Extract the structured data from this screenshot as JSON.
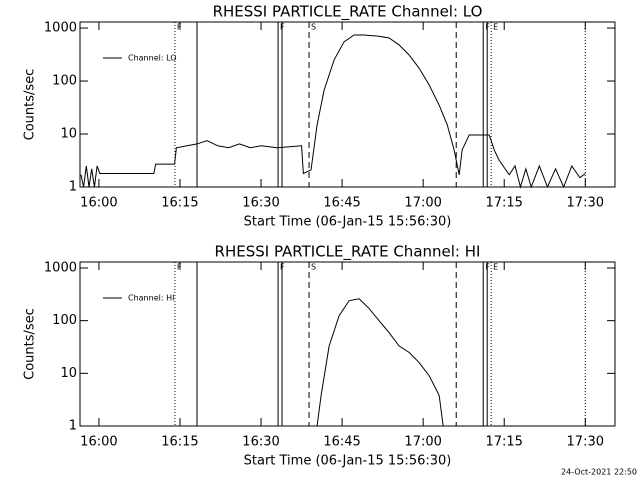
{
  "chart_data": [
    {
      "type": "line",
      "title": "RHESSI PARTICLE_RATE Channel: LO",
      "xlabel": "Start Time (06-Jan-15 15:56:30)",
      "ylabel": "Counts/sec",
      "yscale": "log",
      "ylim": [
        1,
        1300
      ],
      "yticks": [
        1,
        10,
        100,
        1000
      ],
      "xlim": [
        "15:56:30",
        "17:35:30"
      ],
      "xticks": [
        "16:00",
        "16:15",
        "16:30",
        "16:45",
        "17:00",
        "17:15",
        "17:30"
      ],
      "legend": "upper left",
      "series": [
        {
          "name": "Channel: LO",
          "color": "#000000",
          "x": [
            "15:56:40",
            "15:57:10",
            "15:57:40",
            "15:58:10",
            "15:58:40",
            "15:59:10",
            "15:59:40",
            "16:00:10",
            "16:10:10",
            "16:10:30",
            "16:14:00",
            "16:14:20",
            "16:18:10",
            "16:20:00",
            "16:22:00",
            "16:24:00",
            "16:26:00",
            "16:28:00",
            "16:30:00",
            "16:33:00",
            "16:37:30",
            "16:37:50",
            "16:39:15",
            "16:40:22",
            "16:41:40",
            "16:43:31",
            "16:45:22",
            "16:47:13",
            "16:49:04",
            "16:51:51",
            "16:53:42",
            "16:55:33",
            "16:57:24",
            "16:59:15",
            "17:01:07",
            "17:02:58",
            "17:04:27",
            "17:05:44",
            "17:06:40",
            "17:07:13",
            "17:08:31",
            "17:10:22",
            "17:12:13",
            "17:13:09",
            "17:14:04",
            "17:15:56",
            "17:17:00",
            "17:18:00",
            "17:19:00",
            "17:20:00",
            "17:21:30",
            "17:23:00",
            "17:24:30",
            "17:26:00",
            "17:27:30",
            "17:29:00",
            "17:30:00"
          ],
          "values": [
            1.7,
            1,
            2.5,
            1,
            2.2,
            1,
            2.5,
            1.8,
            1.8,
            2.7,
            2.7,
            5.5,
            6.5,
            7.5,
            6,
            5.5,
            6.5,
            5.5,
            6,
            5.5,
            6,
            1.8,
            2.1,
            14.7,
            67,
            250,
            550,
            740,
            740,
            700,
            650,
            480,
            310,
            175,
            84,
            35,
            15,
            5,
            1.7,
            5,
            9.6,
            9.6,
            9.6,
            5,
            3.2,
            1.7,
            2.5,
            1,
            2.2,
            1,
            2.5,
            1,
            2.2,
            1,
            2.5,
            1.5,
            1.8
          ]
        }
      ],
      "markers": [
        {
          "x": "16:14:04",
          "style": "dotted"
        },
        {
          "x": "16:18:09",
          "style": "solid"
        },
        {
          "x": "16:33:09",
          "style": "solid"
        },
        {
          "x": "16:33:53",
          "style": "solid"
        },
        {
          "x": "16:38:53",
          "style": "dashed"
        },
        {
          "x": "17:06:07",
          "style": "dashed"
        },
        {
          "x": "17:11:07",
          "style": "solid"
        },
        {
          "x": "17:11:51",
          "style": "solid"
        },
        {
          "x": "17:12:35",
          "style": "dotted"
        },
        {
          "x": "17:30:00",
          "style": "dotted"
        }
      ],
      "marker_labels": [
        {
          "x": "16:14:04",
          "text": "F"
        },
        {
          "x": "16:33:09",
          "text": "F"
        },
        {
          "x": "16:38:53",
          "text": "S"
        },
        {
          "x": "17:11:07",
          "text": "F"
        },
        {
          "x": "17:12:35",
          "text": "E"
        }
      ]
    },
    {
      "type": "line",
      "title": "RHESSI PARTICLE_RATE Channel: HI",
      "xlabel": "Start Time (06-Jan-15 15:56:30)",
      "ylabel": "Counts/sec",
      "yscale": "log",
      "ylim": [
        1,
        1300
      ],
      "yticks": [
        1,
        10,
        100,
        1000
      ],
      "xlim": [
        "15:56:30",
        "17:35:30"
      ],
      "xticks": [
        "16:00",
        "16:15",
        "16:30",
        "16:45",
        "17:00",
        "17:15",
        "17:30"
      ],
      "legend": "upper left",
      "series": [
        {
          "name": "Channel: HI",
          "color": "#000000",
          "x": [
            "16:40:22",
            "16:41:07",
            "16:42:36",
            "16:44:27",
            "16:46:18",
            "16:48:09",
            "16:50:00",
            "16:51:51",
            "16:53:42",
            "16:55:33",
            "16:57:24",
            "16:59:15",
            "17:01:07",
            "17:02:58",
            "17:03:42"
          ],
          "values": [
            1,
            3.8,
            33,
            124,
            240,
            260,
            170,
            100,
            59,
            33,
            25,
            16,
            9,
            3.8,
            1
          ]
        }
      ],
      "markers": [
        {
          "x": "16:14:04",
          "style": "dotted"
        },
        {
          "x": "16:18:09",
          "style": "solid"
        },
        {
          "x": "16:33:09",
          "style": "solid"
        },
        {
          "x": "16:33:53",
          "style": "solid"
        },
        {
          "x": "16:38:53",
          "style": "dashed"
        },
        {
          "x": "17:06:07",
          "style": "dashed"
        },
        {
          "x": "17:11:07",
          "style": "solid"
        },
        {
          "x": "17:11:51",
          "style": "solid"
        },
        {
          "x": "17:12:35",
          "style": "dotted"
        },
        {
          "x": "17:30:00",
          "style": "dotted"
        }
      ],
      "marker_labels": [
        {
          "x": "16:14:04",
          "text": "F"
        },
        {
          "x": "16:33:09",
          "text": "F"
        },
        {
          "x": "16:38:53",
          "text": "S"
        },
        {
          "x": "17:11:07",
          "text": "F"
        },
        {
          "x": "17:12:35",
          "text": "E"
        }
      ]
    }
  ],
  "footer": "24-Oct-2021 22:50"
}
